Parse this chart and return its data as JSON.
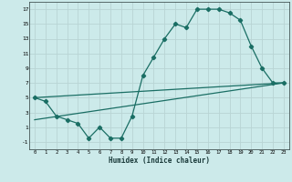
{
  "xlabel": "Humidex (Indice chaleur)",
  "bg_color": "#cceaea",
  "grid_color": "#b8d4d4",
  "line_color": "#1a6e64",
  "xlim": [
    -0.5,
    23.5
  ],
  "ylim": [
    -2,
    18
  ],
  "xticks": [
    0,
    1,
    2,
    3,
    4,
    5,
    6,
    7,
    8,
    9,
    10,
    11,
    12,
    13,
    14,
    15,
    16,
    17,
    18,
    19,
    20,
    21,
    22,
    23
  ],
  "yticks": [
    -1,
    1,
    3,
    5,
    7,
    9,
    11,
    13,
    15,
    17
  ],
  "line1_x": [
    0,
    1,
    2,
    3,
    4,
    5,
    6,
    7,
    8,
    9,
    10,
    11,
    12,
    13,
    14,
    15,
    16,
    17,
    18,
    19,
    20,
    21,
    22,
    23
  ],
  "line1_y": [
    5,
    4.5,
    2.5,
    2,
    1.5,
    -0.5,
    1,
    -0.5,
    -0.5,
    2.5,
    8,
    10.5,
    13,
    15,
    14.5,
    17,
    17,
    17,
    16.5,
    15.5,
    12,
    9,
    7,
    7
  ],
  "line2_x": [
    0,
    23
  ],
  "line2_y": [
    5,
    7
  ],
  "line3_x": [
    0,
    23
  ],
  "line3_y": [
    2,
    7
  ]
}
